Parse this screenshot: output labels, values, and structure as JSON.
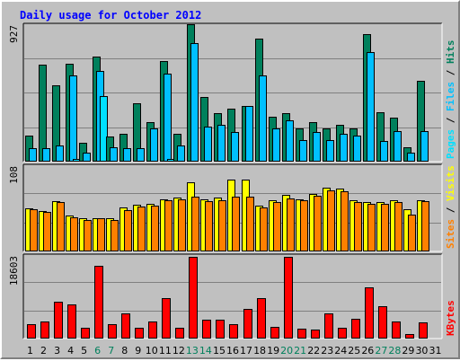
{
  "title": "Daily usage for October 2012",
  "colors": {
    "hits": "#00805c",
    "files": "#00c0ff",
    "pages": "#00e0ff",
    "visits": "#ffff00",
    "sites": "#ff8000",
    "kbytes": "#ff0000",
    "weekend": "#00805c",
    "weekday": "#000000",
    "slash": "#000000"
  },
  "chart_data": [
    {
      "type": "bar",
      "panel": "top",
      "max_label": "927",
      "ylim": [
        0,
        927
      ],
      "series_labels": [
        "Pages",
        "Files",
        "Hits"
      ],
      "series": [
        {
          "name": "Hits",
          "values": [
            180,
            660,
            520,
            670,
            130,
            720,
            170,
            190,
            400,
            270,
            690,
            190,
            940,
            440,
            330,
            360,
            380,
            840,
            310,
            330,
            230,
            270,
            230,
            250,
            230,
            870,
            340,
            300,
            100,
            550,
            0
          ]
        },
        {
          "name": "Files",
          "values": [
            90,
            90,
            110,
            590,
            60,
            620,
            100,
            90,
            90,
            230,
            600,
            110,
            810,
            240,
            250,
            200,
            380,
            590,
            230,
            280,
            150,
            200,
            150,
            190,
            180,
            750,
            140,
            210,
            60,
            210,
            0
          ]
        },
        {
          "name": "Pages",
          "values": [
            0,
            0,
            0,
            20,
            0,
            450,
            0,
            0,
            0,
            0,
            20,
            0,
            0,
            0,
            0,
            0,
            0,
            0,
            0,
            0,
            0,
            0,
            0,
            0,
            0,
            0,
            0,
            0,
            0,
            0,
            0
          ]
        }
      ]
    },
    {
      "type": "bar",
      "panel": "middle",
      "max_label": "108",
      "ylim": [
        0,
        108
      ],
      "series_labels": [
        "Sites",
        "Visits"
      ],
      "series": [
        {
          "name": "Visits",
          "values": [
            55,
            52,
            64,
            46,
            42,
            43,
            43,
            56,
            60,
            61,
            67,
            69,
            88,
            67,
            69,
            92,
            92,
            59,
            65,
            72,
            67,
            74,
            82,
            80,
            66,
            63,
            63,
            65,
            54,
            65,
            0
          ]
        },
        {
          "name": "Sites",
          "values": [
            54,
            51,
            63,
            44,
            40,
            42,
            40,
            53,
            57,
            59,
            65,
            67,
            70,
            64,
            66,
            70,
            70,
            56,
            63,
            68,
            65,
            71,
            78,
            77,
            63,
            61,
            61,
            63,
            47,
            64,
            0
          ]
        }
      ]
    },
    {
      "type": "bar",
      "panel": "bottom",
      "max_label": "18603",
      "ylim": [
        0,
        18603
      ],
      "series_labels": [
        "KBytes"
      ],
      "series": [
        {
          "name": "KBytes",
          "values": [
            3200,
            3800,
            8400,
            7800,
            2400,
            16500,
            3200,
            5700,
            2400,
            3800,
            9300,
            2400,
            18600,
            4300,
            4300,
            3200,
            6800,
            9300,
            2700,
            18600,
            2200,
            2000,
            5700,
            2400,
            4500,
            11600,
            7400,
            3800,
            1000,
            3700,
            0
          ]
        }
      ]
    }
  ],
  "days": [
    "1",
    "2",
    "3",
    "4",
    "5",
    "6",
    "7",
    "8",
    "9",
    "10",
    "11",
    "12",
    "13",
    "14",
    "15",
    "16",
    "17",
    "18",
    "19",
    "20",
    "21",
    "22",
    "23",
    "24",
    "25",
    "26",
    "27",
    "28",
    "29",
    "30",
    "31"
  ],
  "weekends": [
    6,
    7,
    13,
    14,
    20,
    21,
    27,
    28
  ]
}
